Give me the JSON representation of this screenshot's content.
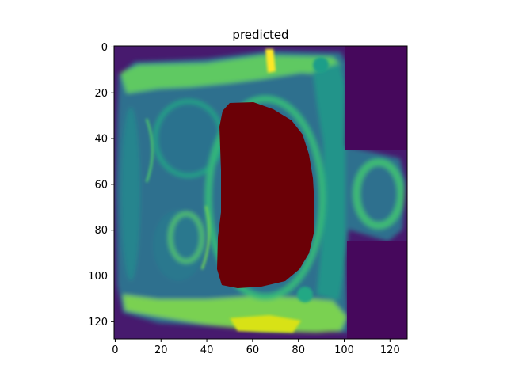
{
  "figure": {
    "title": "predicted",
    "x_ticks": [
      "0",
      "20",
      "40",
      "60",
      "80",
      "100",
      "120"
    ],
    "y_ticks": [
      "0",
      "20",
      "40",
      "60",
      "80",
      "100",
      "120"
    ],
    "axis_range": [
      0,
      127
    ],
    "colormap": "viridis",
    "overlay_color": "#6b0006",
    "colors": {
      "background": "#440154",
      "dark_purple": "#471a6e",
      "blue_teal": "#2e6f8e",
      "teal": "#24948a",
      "green": "#3fbc73",
      "yellow_green": "#a0da39",
      "bright_yellow": "#fde725",
      "mask": "#6b0006"
    }
  }
}
